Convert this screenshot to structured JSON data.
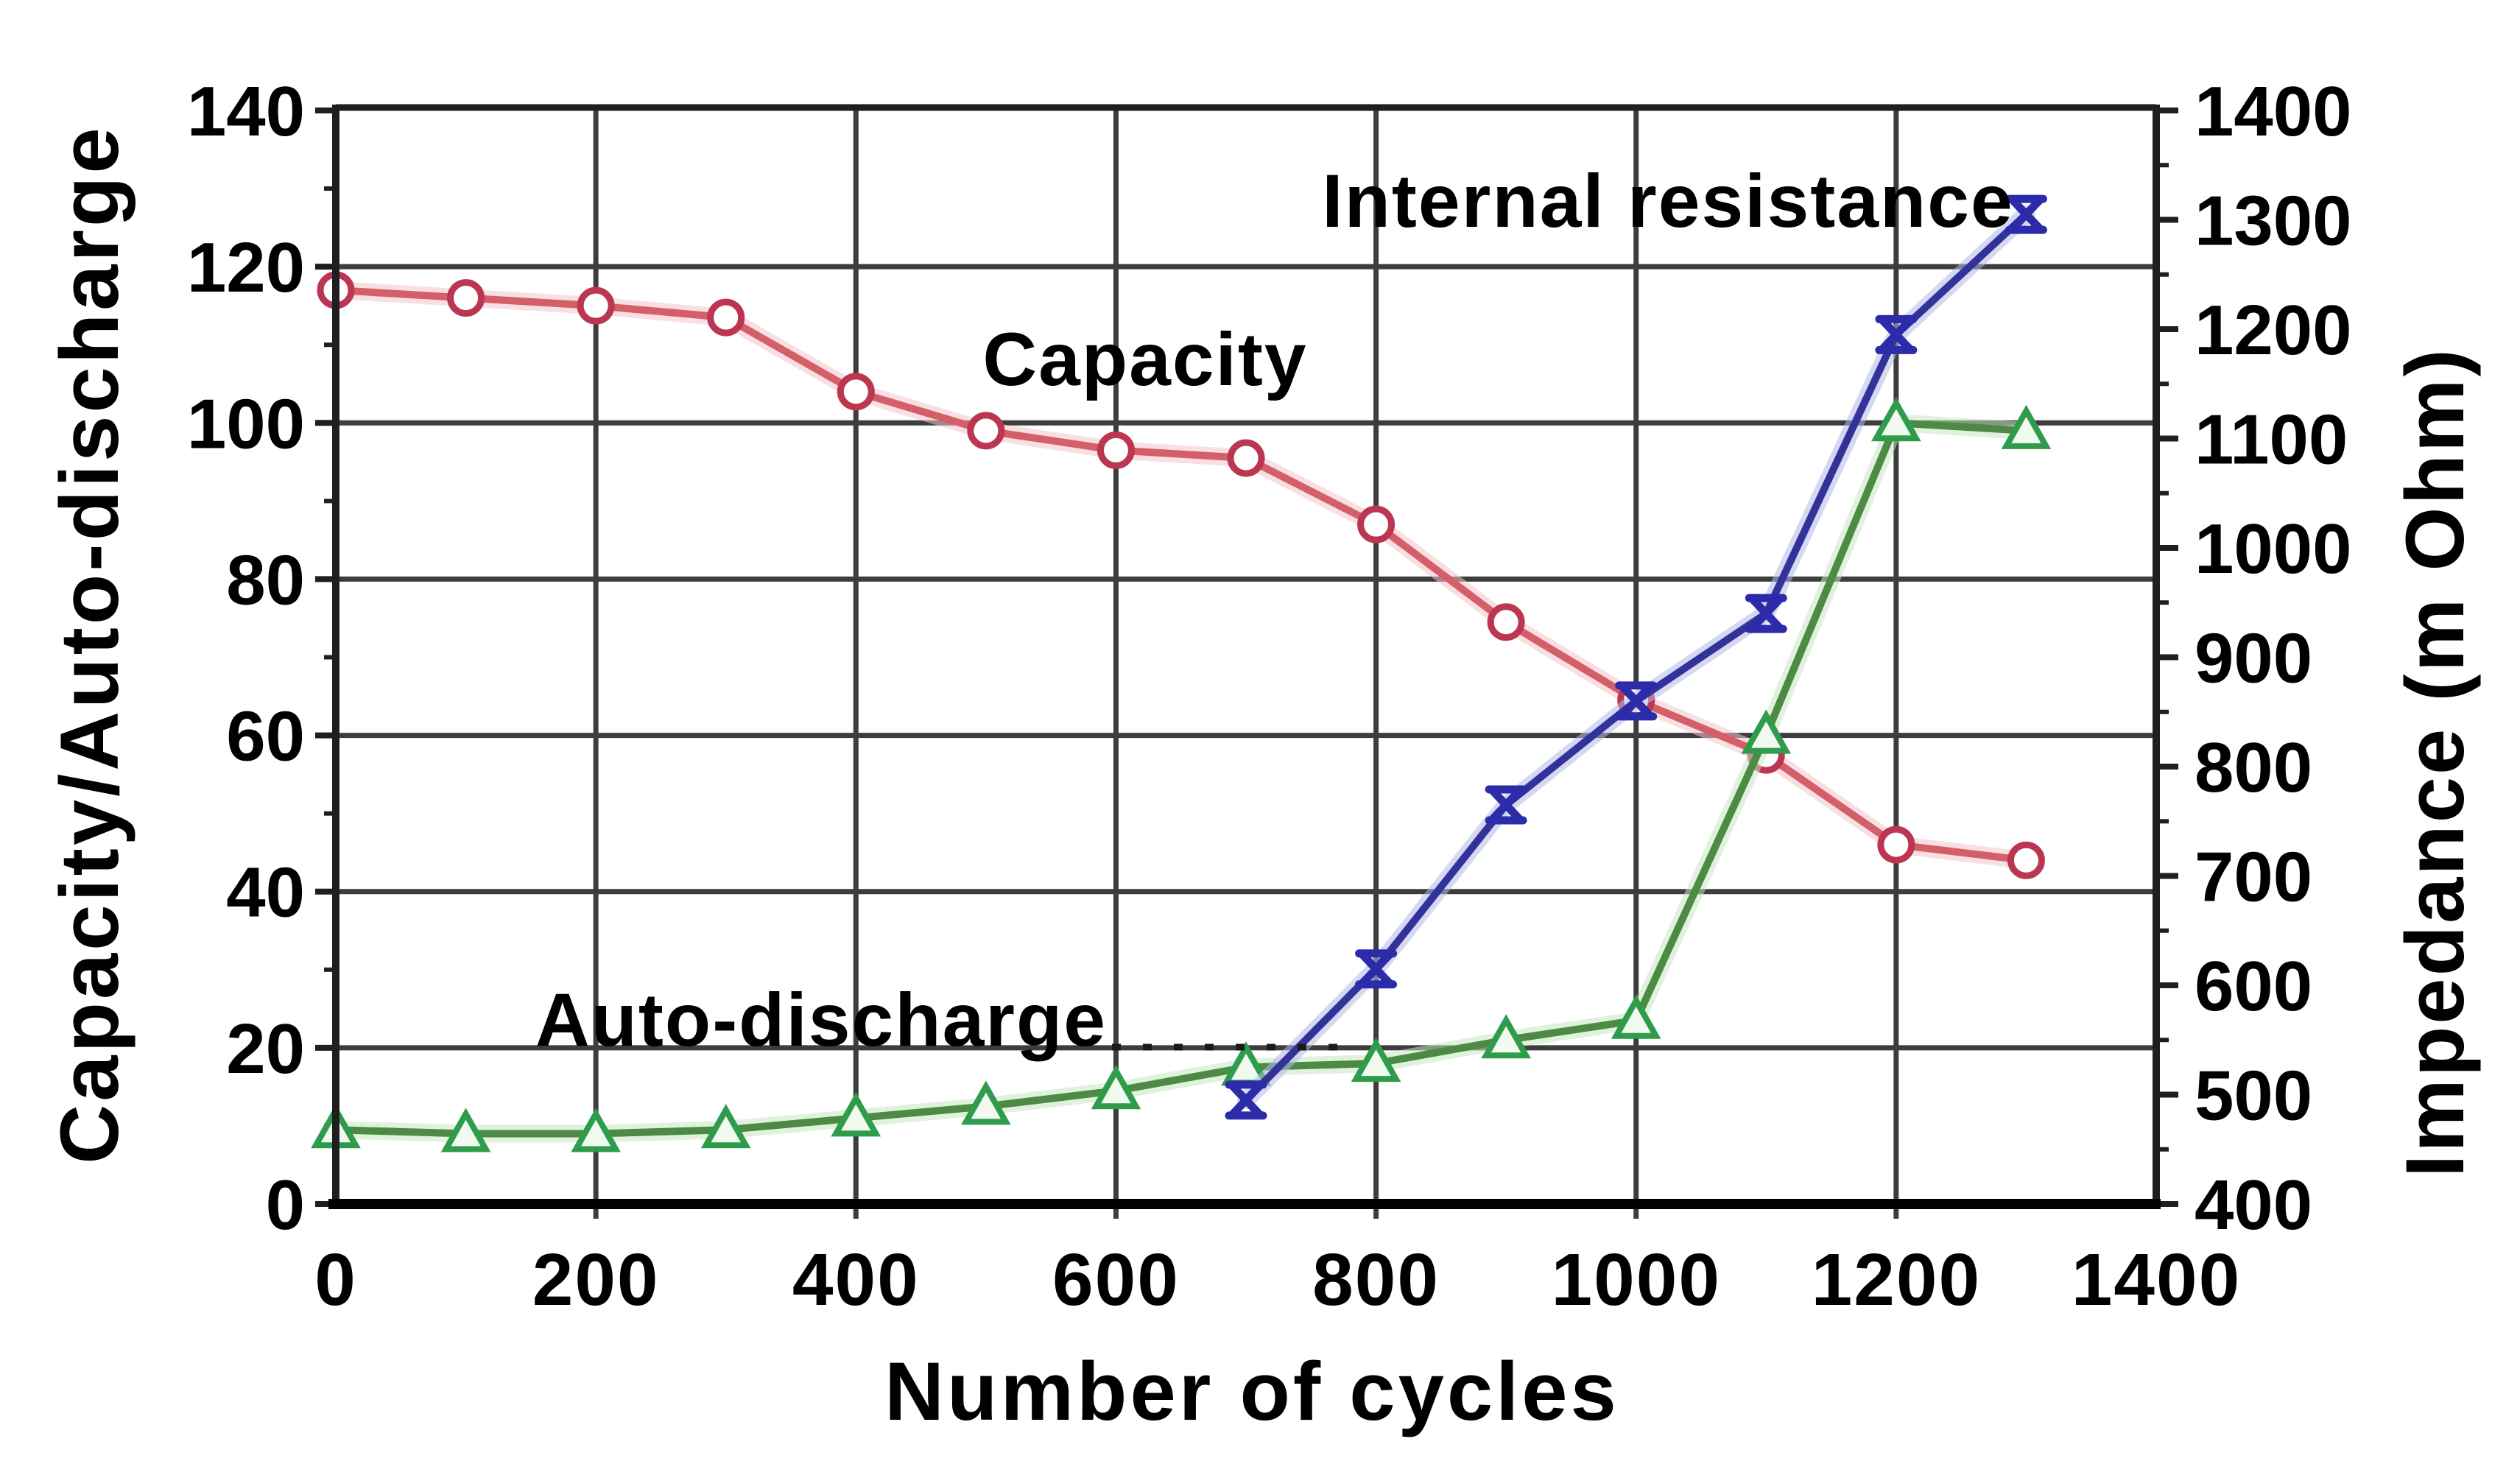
{
  "chart_data": {
    "type": "line",
    "title": "",
    "xlabel": "Number of cycles",
    "ylabel_left": "Capacity/Auto-discharge",
    "ylabel_right": "Impedance (m Ohm)",
    "x_range": [
      0,
      1400
    ],
    "y_left_range": [
      0,
      140
    ],
    "y_right_range": [
      400,
      1400
    ],
    "x_ticks": [
      0,
      200,
      400,
      600,
      800,
      1000,
      1200,
      1400
    ],
    "y_left_ticks": [
      0,
      20,
      40,
      60,
      80,
      100,
      120,
      140
    ],
    "y_left_minor_step": 10,
    "y_right_ticks": [
      400,
      500,
      600,
      700,
      800,
      900,
      1000,
      1100,
      1200,
      1300,
      1400
    ],
    "y_right_minor_step": 50,
    "grid": true,
    "grid_color": "#3d3d3d",
    "spine_color": "#1f1f1f",
    "bottom_axis_color": "#000000",
    "legend_position": "in-plot annotations",
    "series": [
      {
        "name": "Capacity",
        "axis": "left",
        "marker": "circle",
        "color": "#d45f68",
        "marker_color": "#bb3650",
        "halo_color": "#f3c4cb",
        "x": [
          0,
          100,
          200,
          300,
          400,
          500,
          600,
          700,
          800,
          900,
          1000,
          1100,
          1200,
          1300
        ],
        "values": [
          117,
          116,
          115,
          113.5,
          104,
          99,
          96.5,
          95.5,
          87,
          74.5,
          64.5,
          57.5,
          46,
          44
        ]
      },
      {
        "name": "Auto-discharge",
        "axis": "left",
        "marker": "triangle",
        "color": "#4d8a43",
        "marker_color": "#2e9c4b",
        "halo_color": "#c6e8c3",
        "x": [
          0,
          100,
          200,
          300,
          400,
          500,
          600,
          700,
          800,
          900,
          1000,
          1100,
          1200,
          1300
        ],
        "values": [
          9.5,
          9,
          9,
          9.5,
          11,
          12.5,
          14.5,
          17.5,
          18,
          21,
          23.5,
          60,
          100,
          99
        ]
      },
      {
        "name": "Internal resistance",
        "axis": "right",
        "marker": "xcaps",
        "color": "#32329b",
        "marker_color": "#2c2cab",
        "halo_color": "#b3b8e6",
        "x": [
          700,
          800,
          900,
          1000,
          1100,
          1200,
          1300
        ],
        "values": [
          495,
          615,
          765,
          860,
          940,
          1195,
          1305
        ]
      }
    ],
    "annotations": [
      {
        "text": "Capacity"
      },
      {
        "text": "Internal resistance"
      },
      {
        "text": "Auto-discharge"
      }
    ]
  }
}
